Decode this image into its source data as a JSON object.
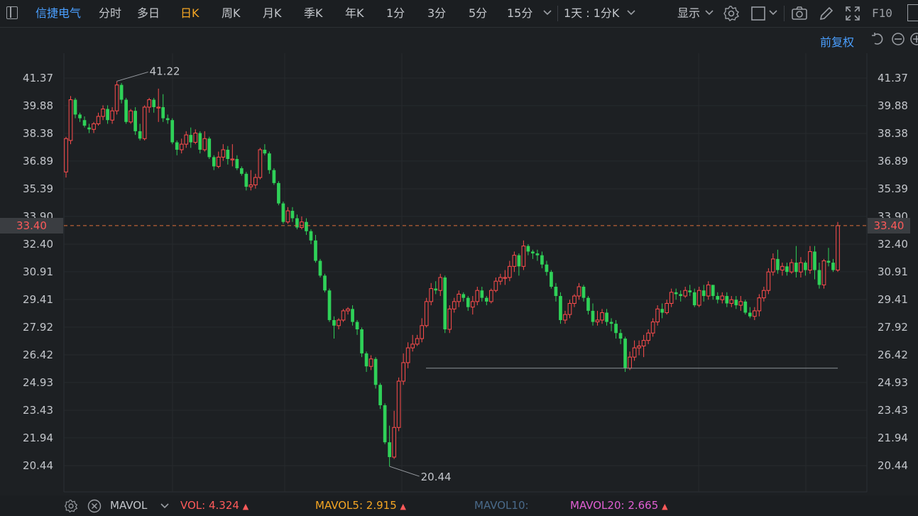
{
  "toolbar": {
    "stock_name": "信捷电气",
    "periods": [
      "分时",
      "多日",
      "日K",
      "周K",
      "月K",
      "季K",
      "年K",
      "1分",
      "3分",
      "5分",
      "15分"
    ],
    "active_period": "日K",
    "interval_selector": "1天 : 1分K",
    "display_label": "显示",
    "f10_label": "F10"
  },
  "subbar": {
    "adjust_label": "前复权"
  },
  "price_axis": {
    "ticks": [
      "41.37",
      "39.88",
      "38.38",
      "36.89",
      "35.39",
      "33.90",
      "32.40",
      "30.91",
      "29.41",
      "27.92",
      "26.42",
      "24.93",
      "23.43",
      "21.94",
      "20.44"
    ],
    "current_price": "33.40"
  },
  "annotations": {
    "high_label": "41.22",
    "low_label": "20.44"
  },
  "colors": {
    "up": "#ff4d4d",
    "down": "#2fd158",
    "accent": "#f5a623",
    "link": "#4a9fff",
    "vol": "#ff5a5a",
    "mavol5": "#f5a623",
    "mavol10": "#4a6a8a",
    "mavol20": "#e05fd3"
  },
  "bottombar": {
    "indicator_name": "MAVOL",
    "vol_label": "VOL:",
    "vol_value": "4.324",
    "mavol5_label": "MAVOL5:",
    "mavol5_value": "2.915",
    "mavol10_label": "MAVOL10:",
    "mavol20_label": "MAVOL20:",
    "mavol20_value": "2.665"
  },
  "chart_data": {
    "type": "candlestick",
    "y_range": [
      19.8,
      42.0
    ],
    "candles": [
      [
        36.3,
        38.1,
        36.0,
        38.2
      ],
      [
        38.0,
        40.2,
        37.8,
        40.4
      ],
      [
        40.2,
        39.4,
        39.2,
        40.3
      ],
      [
        39.4,
        39.2,
        39.0,
        39.5
      ],
      [
        39.1,
        38.8,
        38.7,
        39.3
      ],
      [
        38.7,
        38.6,
        38.4,
        38.9
      ],
      [
        38.6,
        38.9,
        38.4,
        39.0
      ],
      [
        38.9,
        39.3,
        38.8,
        39.5
      ],
      [
        39.3,
        39.7,
        39.1,
        39.9
      ],
      [
        39.7,
        39.1,
        38.9,
        39.9
      ],
      [
        39.1,
        39.6,
        38.9,
        39.8
      ],
      [
        39.6,
        41.0,
        39.4,
        41.2
      ],
      [
        41.0,
        40.2,
        40.0,
        41.1
      ],
      [
        40.2,
        39.0,
        38.9,
        40.3
      ],
      [
        39.0,
        39.6,
        38.9,
        39.7
      ],
      [
        39.6,
        38.5,
        38.3,
        39.8
      ],
      [
        38.5,
        38.1,
        38.0,
        38.9
      ],
      [
        38.1,
        39.8,
        38.0,
        39.9
      ],
      [
        39.8,
        40.2,
        39.5,
        40.3
      ],
      [
        40.2,
        39.8,
        39.5,
        40.3
      ],
      [
        39.8,
        39.8,
        39.0,
        40.8
      ],
      [
        39.8,
        39.2,
        39.0,
        40.5
      ],
      [
        39.2,
        39.1,
        38.9,
        39.4
      ],
      [
        39.1,
        37.9,
        37.8,
        39.2
      ],
      [
        37.9,
        37.5,
        37.2,
        38.0
      ],
      [
        37.5,
        37.8,
        37.3,
        38.1
      ],
      [
        37.8,
        38.3,
        37.6,
        38.5
      ],
      [
        38.3,
        37.9,
        37.6,
        38.7
      ],
      [
        37.9,
        38.4,
        37.8,
        38.6
      ],
      [
        38.4,
        37.5,
        37.3,
        38.5
      ],
      [
        37.5,
        38.1,
        37.4,
        38.5
      ],
      [
        38.1,
        37.1,
        37.0,
        38.2
      ],
      [
        37.1,
        36.6,
        36.4,
        37.2
      ],
      [
        36.6,
        37.1,
        36.5,
        37.4
      ],
      [
        37.1,
        37.5,
        36.9,
        37.8
      ],
      [
        37.5,
        37.0,
        36.7,
        37.7
      ],
      [
        37.0,
        37.0,
        36.6,
        37.8
      ],
      [
        37.0,
        36.5,
        36.4,
        37.2
      ],
      [
        36.5,
        36.2,
        36.1,
        36.6
      ],
      [
        36.2,
        35.5,
        35.3,
        36.3
      ],
      [
        35.5,
        35.6,
        35.3,
        36.4
      ],
      [
        35.6,
        36.0,
        35.4,
        36.2
      ],
      [
        36.0,
        37.5,
        35.9,
        37.6
      ],
      [
        37.5,
        37.3,
        37.2,
        37.8
      ],
      [
        37.3,
        36.4,
        36.2,
        37.4
      ],
      [
        36.4,
        35.7,
        35.6,
        36.5
      ],
      [
        35.7,
        34.6,
        34.5,
        35.8
      ],
      [
        34.6,
        33.6,
        33.5,
        34.7
      ],
      [
        33.6,
        34.2,
        33.5,
        34.4
      ],
      [
        34.2,
        33.8,
        33.6,
        34.4
      ],
      [
        33.8,
        33.3,
        33.2,
        34.0
      ],
      [
        33.3,
        33.6,
        33.2,
        33.9
      ],
      [
        33.6,
        33.1,
        32.9,
        33.8
      ],
      [
        33.1,
        32.6,
        32.4,
        33.2
      ],
      [
        32.6,
        31.5,
        31.4,
        32.9
      ],
      [
        31.5,
        30.7,
        30.6,
        31.6
      ],
      [
        30.7,
        29.9,
        29.8,
        30.8
      ],
      [
        29.9,
        28.3,
        28.2,
        30.0
      ],
      [
        28.3,
        28.0,
        27.3,
        28.5
      ],
      [
        28.0,
        28.3,
        27.8,
        28.4
      ],
      [
        28.3,
        28.8,
        28.2,
        28.9
      ],
      [
        28.8,
        28.9,
        28.6,
        29.0
      ],
      [
        28.9,
        28.2,
        28.0,
        29.1
      ],
      [
        28.2,
        27.8,
        27.5,
        28.3
      ],
      [
        27.8,
        26.5,
        26.3,
        27.9
      ],
      [
        26.5,
        25.8,
        25.5,
        26.6
      ],
      [
        25.8,
        26.2,
        25.6,
        26.4
      ],
      [
        26.2,
        24.8,
        24.6,
        26.3
      ],
      [
        24.8,
        23.7,
        23.5,
        24.9
      ],
      [
        23.7,
        21.7,
        21.6,
        23.8
      ],
      [
        21.7,
        20.9,
        20.4,
        22.6
      ],
      [
        20.9,
        22.5,
        20.8,
        23.4
      ],
      [
        22.5,
        25.0,
        22.3,
        25.2
      ],
      [
        25.0,
        26.0,
        24.8,
        26.5
      ],
      [
        26.0,
        26.8,
        25.7,
        27.1
      ],
      [
        26.8,
        27.0,
        26.6,
        27.5
      ],
      [
        27.0,
        27.3,
        26.9,
        27.5
      ],
      [
        27.3,
        28.0,
        27.1,
        28.4
      ],
      [
        28.0,
        29.3,
        27.9,
        29.5
      ],
      [
        29.3,
        30.0,
        29.1,
        30.3
      ],
      [
        30.0,
        29.9,
        29.7,
        30.4
      ],
      [
        29.9,
        30.6,
        29.6,
        30.8
      ],
      [
        30.6,
        27.8,
        27.6,
        30.7
      ],
      [
        27.8,
        28.9,
        27.6,
        29.1
      ],
      [
        28.9,
        29.3,
        28.7,
        29.5
      ],
      [
        29.3,
        29.7,
        29.0,
        29.9
      ],
      [
        29.7,
        29.5,
        29.3,
        29.8
      ],
      [
        29.5,
        29.0,
        28.8,
        29.6
      ],
      [
        29.0,
        29.3,
        28.6,
        29.6
      ],
      [
        29.3,
        29.9,
        29.1,
        30.1
      ],
      [
        29.9,
        29.5,
        29.3,
        30.1
      ],
      [
        29.5,
        29.3,
        29.1,
        29.6
      ],
      [
        29.3,
        29.9,
        29.2,
        30.0
      ],
      [
        29.9,
        30.4,
        29.8,
        30.6
      ],
      [
        30.4,
        30.6,
        30.2,
        30.8
      ],
      [
        30.6,
        30.6,
        30.2,
        31.0
      ],
      [
        30.6,
        31.2,
        30.4,
        31.5
      ],
      [
        31.2,
        31.8,
        30.9,
        32.0
      ],
      [
        31.8,
        31.2,
        30.7,
        31.9
      ],
      [
        31.2,
        32.3,
        31.0,
        32.6
      ],
      [
        32.3,
        32.0,
        31.8,
        32.4
      ],
      [
        32.0,
        31.9,
        31.6,
        32.1
      ],
      [
        31.9,
        31.8,
        31.5,
        32.1
      ],
      [
        31.8,
        31.3,
        31.1,
        32.0
      ],
      [
        31.3,
        30.9,
        30.7,
        31.5
      ],
      [
        30.9,
        30.1,
        30.0,
        31.0
      ],
      [
        30.1,
        29.6,
        29.3,
        30.3
      ],
      [
        29.6,
        28.3,
        28.1,
        29.8
      ],
      [
        28.3,
        28.6,
        28.1,
        28.8
      ],
      [
        28.6,
        29.2,
        28.4,
        29.4
      ],
      [
        29.2,
        29.6,
        29.0,
        29.7
      ],
      [
        29.6,
        30.1,
        29.4,
        30.3
      ],
      [
        30.1,
        29.5,
        29.3,
        30.2
      ],
      [
        29.5,
        28.8,
        28.6,
        29.6
      ],
      [
        28.8,
        28.2,
        28.0,
        29.2
      ],
      [
        28.2,
        28.3,
        28.0,
        28.8
      ],
      [
        28.3,
        28.7,
        28.1,
        28.9
      ],
      [
        28.7,
        28.2,
        28.0,
        28.9
      ],
      [
        28.2,
        28.1,
        27.7,
        28.4
      ],
      [
        28.1,
        27.6,
        27.3,
        28.3
      ],
      [
        27.6,
        27.3,
        27.0,
        27.8
      ],
      [
        27.3,
        25.7,
        25.5,
        27.4
      ],
      [
        25.7,
        26.3,
        25.6,
        26.6
      ],
      [
        26.3,
        26.8,
        26.1,
        27.2
      ],
      [
        26.8,
        26.9,
        26.4,
        27.2
      ],
      [
        26.9,
        27.2,
        26.3,
        27.5
      ],
      [
        27.2,
        27.6,
        27.0,
        27.8
      ],
      [
        27.6,
        28.2,
        27.4,
        28.4
      ],
      [
        28.2,
        28.9,
        28.0,
        29.1
      ],
      [
        28.9,
        28.7,
        28.4,
        29.2
      ],
      [
        28.7,
        29.2,
        28.6,
        29.4
      ],
      [
        29.2,
        29.8,
        29.0,
        30.0
      ],
      [
        29.8,
        29.7,
        29.4,
        30.0
      ],
      [
        29.7,
        29.6,
        29.3,
        29.9
      ],
      [
        29.6,
        29.9,
        29.5,
        30.1
      ],
      [
        29.9,
        29.8,
        29.6,
        30.2
      ],
      [
        29.8,
        29.1,
        29.0,
        30.0
      ],
      [
        29.1,
        29.9,
        29.0,
        30.1
      ],
      [
        29.9,
        29.6,
        29.3,
        30.2
      ],
      [
        29.6,
        30.2,
        29.4,
        30.4
      ],
      [
        30.2,
        29.6,
        29.4,
        30.2
      ],
      [
        29.6,
        29.4,
        29.2,
        29.8
      ],
      [
        29.4,
        29.6,
        29.2,
        29.8
      ],
      [
        29.6,
        29.2,
        29.0,
        29.8
      ],
      [
        29.2,
        29.4,
        29.0,
        29.6
      ],
      [
        29.4,
        29.1,
        28.9,
        29.6
      ],
      [
        29.1,
        29.3,
        28.8,
        29.6
      ],
      [
        29.3,
        28.7,
        28.6,
        29.4
      ],
      [
        28.7,
        28.5,
        28.4,
        29.0
      ],
      [
        28.5,
        28.8,
        28.3,
        29.0
      ],
      [
        28.8,
        29.5,
        28.5,
        29.7
      ],
      [
        29.5,
        29.9,
        29.3,
        30.1
      ],
      [
        29.9,
        30.9,
        29.7,
        31.1
      ],
      [
        30.9,
        31.6,
        30.7,
        31.9
      ],
      [
        31.6,
        31.0,
        30.8,
        32.1
      ],
      [
        31.0,
        31.2,
        30.7,
        31.4
      ],
      [
        31.2,
        30.9,
        30.7,
        31.4
      ],
      [
        30.9,
        31.4,
        30.8,
        31.6
      ],
      [
        31.4,
        30.9,
        30.6,
        32.3
      ],
      [
        30.9,
        31.4,
        30.6,
        31.7
      ],
      [
        31.4,
        31.0,
        30.7,
        31.5
      ],
      [
        31.0,
        32.0,
        30.8,
        32.3
      ],
      [
        32.0,
        31.0,
        30.5,
        32.3
      ],
      [
        31.0,
        30.2,
        30.0,
        31.4
      ],
      [
        30.2,
        31.5,
        30.0,
        31.6
      ],
      [
        31.5,
        31.4,
        31.2,
        32.2
      ],
      [
        31.4,
        31.0,
        30.9,
        31.6
      ],
      [
        31.0,
        33.4,
        30.9,
        33.6
      ]
    ],
    "support_line": 25.7
  }
}
